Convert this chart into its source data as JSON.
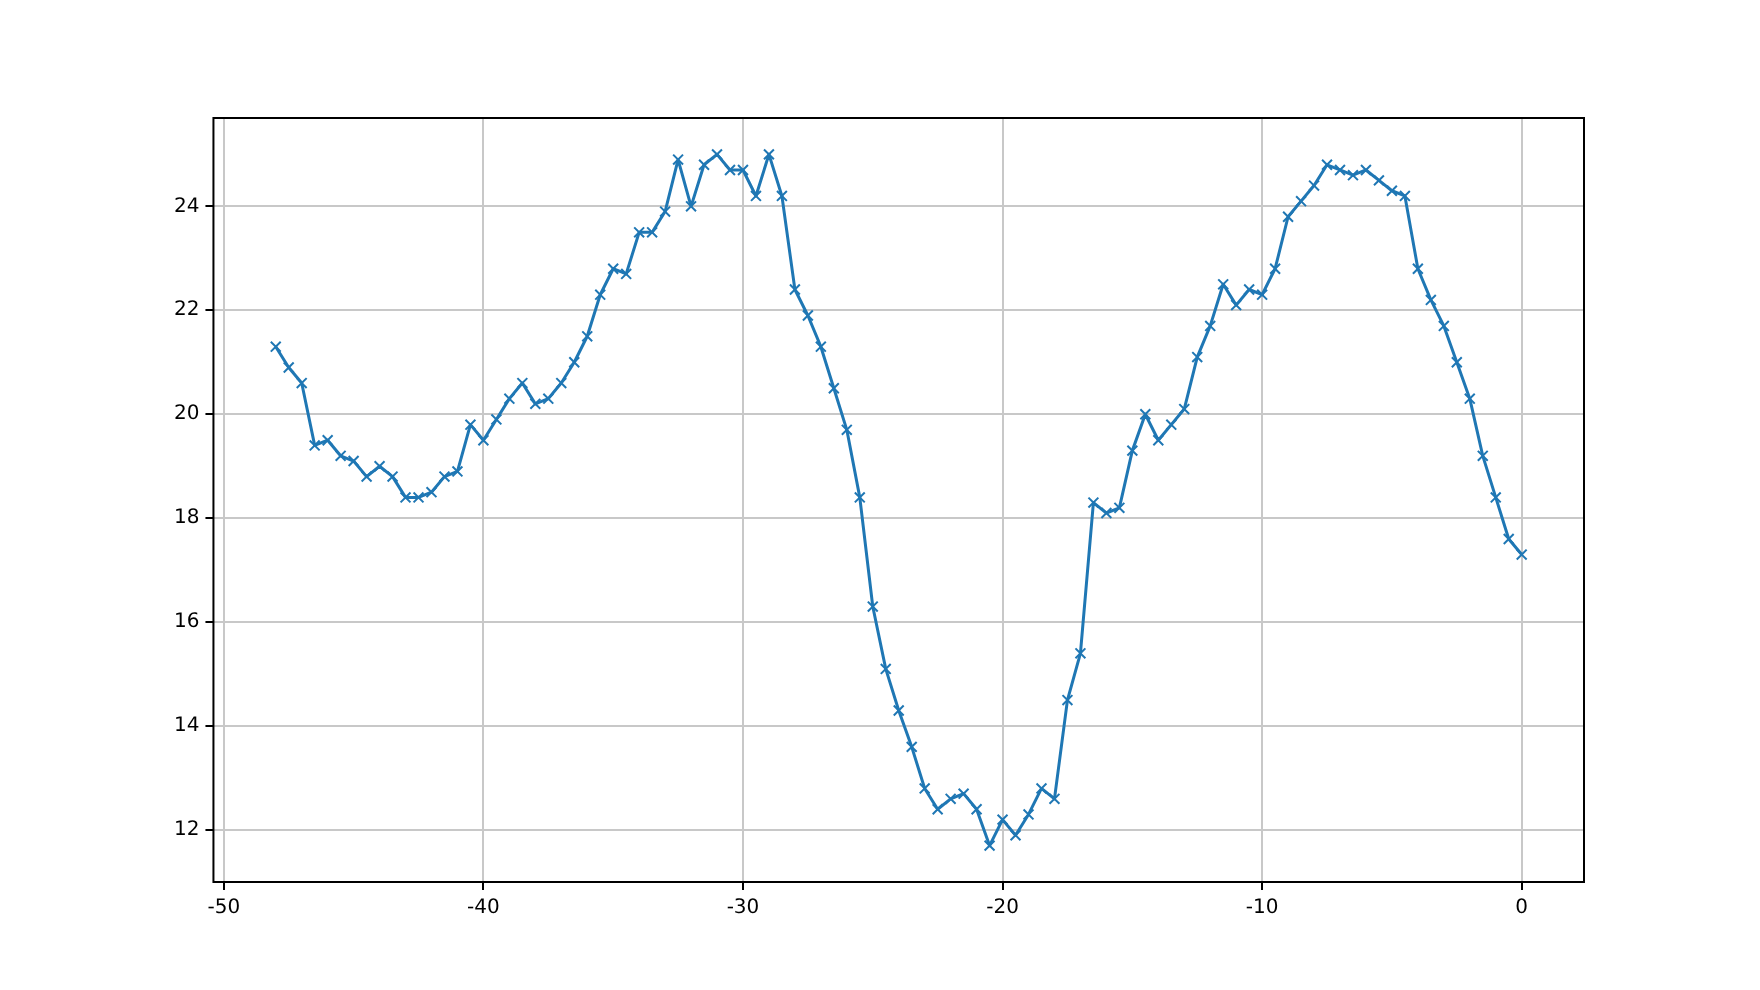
{
  "chart_data": {
    "type": "line",
    "x": [
      -48,
      -47.5,
      -47,
      -46.5,
      -46,
      -45.5,
      -45,
      -44.5,
      -44,
      -43.5,
      -43,
      -42.5,
      -42,
      -41.5,
      -41,
      -40.5,
      -40,
      -39.5,
      -39,
      -38.5,
      -38,
      -37.5,
      -37,
      -36.5,
      -36,
      -35.5,
      -35,
      -34.5,
      -34,
      -33.5,
      -33,
      -32.5,
      -32,
      -31.5,
      -31,
      -30.5,
      -30,
      -29.5,
      -29,
      -28.5,
      -28,
      -27.5,
      -27,
      -26.5,
      -26,
      -25.5,
      -25,
      -24.5,
      -24,
      -23.5,
      -23,
      -22.5,
      -22,
      -21.5,
      -21,
      -20.5,
      -20,
      -19.5,
      -19,
      -18.5,
      -18,
      -17.5,
      -17,
      -16.5,
      -16,
      -15.5,
      -15,
      -14.5,
      -14,
      -13.5,
      -13,
      -12.5,
      -12,
      -11.5,
      -11,
      -10.5,
      -10,
      -9.5,
      -9,
      -8.5,
      -8,
      -7.5,
      -7,
      -6.5,
      -6,
      -5.5,
      -5,
      -4.5,
      -4,
      -3.5,
      -3,
      -2.5,
      -2,
      -1.5,
      -1,
      -0.5,
      0
    ],
    "series": [
      {
        "color": "#1f77b4",
        "values": [
          21.3,
          20.9,
          20.6,
          19.4,
          19.5,
          19.2,
          19.1,
          18.8,
          19.0,
          18.8,
          18.4,
          18.4,
          18.5,
          18.8,
          18.9,
          19.8,
          19.5,
          19.9,
          20.3,
          20.6,
          20.2,
          20.3,
          20.6,
          21.0,
          21.5,
          22.3,
          22.8,
          22.7,
          23.5,
          23.5,
          23.9,
          24.9,
          24.0,
          24.8,
          25.0,
          24.7,
          24.7,
          24.2,
          25.0,
          24.2,
          22.4,
          21.9,
          21.3,
          20.5,
          19.7,
          18.4,
          16.3,
          15.1,
          14.3,
          13.6,
          12.8,
          12.4,
          12.6,
          12.7,
          12.4,
          11.7,
          12.2,
          11.9,
          12.3,
          12.8,
          12.6,
          14.5,
          15.4,
          18.3,
          18.1,
          18.2,
          19.3,
          20.0,
          19.5,
          19.8,
          20.1,
          21.1,
          21.7,
          22.5,
          22.1,
          22.4,
          22.3,
          22.8,
          23.8,
          24.1,
          24.4,
          24.8,
          24.7,
          24.6,
          24.7,
          24.5,
          24.3,
          24.2,
          22.8,
          22.2,
          21.7,
          21.0,
          20.3,
          19.2,
          18.4,
          17.6,
          17.3
        ]
      }
    ],
    "xlim": [
      -50.4,
      2.4
    ],
    "ylim": [
      11,
      25.7
    ],
    "xticks": [
      -50,
      -40,
      -30,
      -20,
      -10,
      0
    ],
    "yticks": [
      12,
      14,
      16,
      18,
      20,
      22,
      24
    ],
    "grid": true,
    "legend": false,
    "marker": "cross",
    "line_style": "solid"
  }
}
